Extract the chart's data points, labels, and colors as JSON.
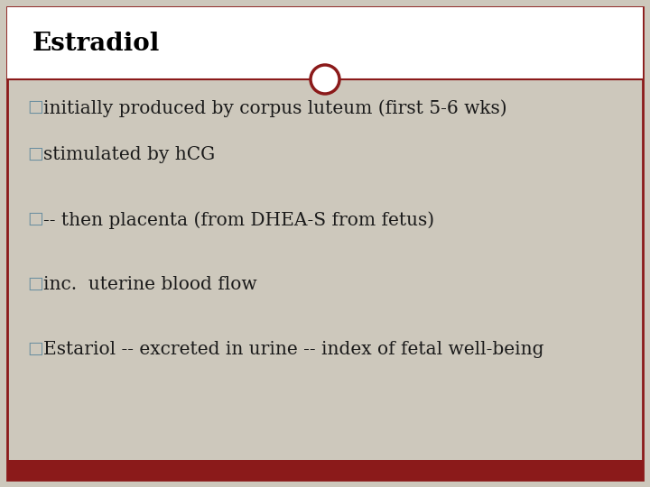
{
  "title": "Estradiol",
  "title_color": "#000000",
  "title_bg_color": "#ffffff",
  "body_bg_color": "#cdc8bc",
  "outer_border_color": "#8b1a1a",
  "bottom_bar_color": "#8b1a1a",
  "circle_edge_color": "#8b1a1a",
  "circle_fill_color": "#ffffff",
  "divider_color": "#8b1a1a",
  "bullet_char": "□",
  "bullet_color": "#6b8fa0",
  "text_color": "#1a1a1a",
  "lines": [
    "initially produced by corpus luteum (first 5-6 wks)",
    "stimulated by hCG",
    "",
    "-- then placenta (from DHEA-S from fetus)",
    "",
    "inc.  uterine blood flow",
    "",
    "Estariol -- excreted in urine -- index of fetal well-being"
  ],
  "title_fontsize": 20,
  "body_fontsize": 14.5,
  "fig_width": 7.2,
  "fig_height": 5.4,
  "dpi": 100
}
